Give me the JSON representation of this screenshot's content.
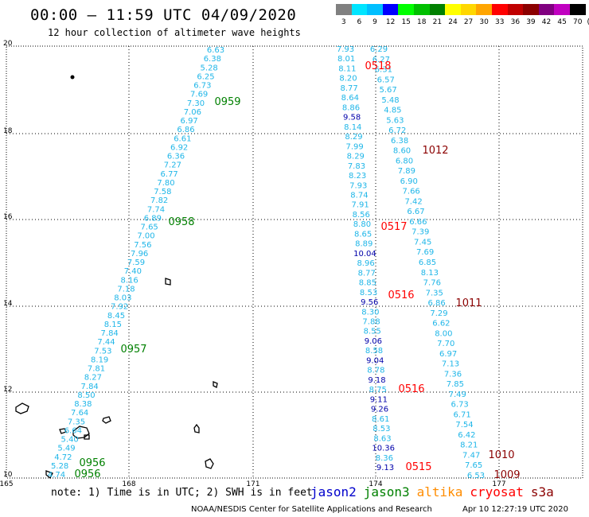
{
  "header": {
    "title": "00:00 – 11:59 UTC 04/09/2020",
    "subtitle": "12 hour collection of altimeter wave heights"
  },
  "color_scale": {
    "labels": [
      "3",
      "6",
      "9",
      "12",
      "15",
      "18",
      "21",
      "24",
      "27",
      "30",
      "33",
      "36",
      "39",
      "42",
      "45",
      "70"
    ],
    "colors": [
      "#808080",
      "#00e5ff",
      "#00bfff",
      "#0000ff",
      "#00ff00",
      "#00c000",
      "#008000",
      "#ffff00",
      "#ffd700",
      "#ffa500",
      "#ff0000",
      "#c00000",
      "#8b0000",
      "#800080",
      "#c000c0",
      "#000000"
    ],
    "unit": "(ft)"
  },
  "map": {
    "lat_labels": [
      "20",
      "18",
      "16",
      "14",
      "12",
      "10"
    ],
    "lon_labels": [
      "165",
      "168",
      "171",
      "174",
      "177"
    ],
    "colors": {
      "jason2": "#0000cc",
      "jason3": "#008000",
      "altika": "#ff8c00",
      "cryosat": "#ff0000",
      "s3a": "#8b0000",
      "value_light": "#1fb6e8",
      "value_dark": "#0000aa",
      "grid": "#000000",
      "land": "#000000"
    },
    "tracks": [
      {
        "color": "#1fb6e8",
        "values": [
          "6.63",
          "6.38",
          "5.28",
          "6.25",
          "6.73",
          "7.69",
          "7.30",
          "7.06",
          "6.97",
          "6.86",
          "6.61",
          "6.92",
          "6.36",
          "7.27",
          "6.77",
          "7.80",
          "7.58",
          "7.82",
          "7.74",
          "6.89",
          "7.65",
          "7.00",
          "7.56",
          "7.96",
          "7.59",
          "7.40",
          "8.16",
          "7.18",
          "8.03",
          "7.92",
          "8.45",
          "8.15",
          "7.84",
          "7.44",
          "7.53",
          "8.19",
          "7.81",
          "8.27",
          "7.84",
          "8.50",
          "8.38",
          "7.64",
          "7.35",
          "6.64",
          "5.40",
          "5.49",
          "4.72",
          "5.28",
          "4.74"
        ]
      },
      {
        "color": "#1fb6e8",
        "values": [
          "7.93",
          "8.01",
          "8.11",
          "8.20",
          "8.77",
          "8.64",
          "8.86",
          "9.58",
          "8.14",
          "8.29",
          "7.99",
          "8.29",
          "7.83",
          "8.23",
          "7.93",
          "8.74",
          "7.91",
          "8.56",
          "8.80",
          "8.65",
          "8.89",
          "10.04",
          "8.96",
          "8.77",
          "8.85",
          "8.53",
          "9.56",
          "8.30",
          "7.88",
          "8.55",
          "9.06",
          "8.58",
          "9.04",
          "8.78",
          "9.18",
          "8.75",
          "9.11",
          "9.26",
          "8.61",
          "8.53",
          "8.63",
          "10.36",
          "8.36",
          "9.13"
        ]
      },
      {
        "color": "#1fb6e8",
        "values": [
          "6.29",
          "6.27",
          "6.31",
          "6.57",
          "5.67",
          "5.48",
          "4.85",
          "5.63",
          "6.72",
          "6.38",
          "8.60",
          "6.80",
          "7.89",
          "6.90",
          "7.66",
          "7.42",
          "6.67",
          "6.66",
          "7.39",
          "7.45",
          "7.69",
          "6.85",
          "8.13",
          "7.76",
          "7.35",
          "6.86",
          "7.29",
          "6.62",
          "8.00",
          "7.70",
          "6.97",
          "7.13",
          "7.36",
          "7.85",
          "7.49",
          "6.73",
          "6.71",
          "7.54",
          "6.42",
          "8.21",
          "7.47",
          "7.65",
          "6.53"
        ]
      }
    ],
    "pass_labels": [
      {
        "text": "0959",
        "color": "#008000"
      },
      {
        "text": "0958",
        "color": "#008000"
      },
      {
        "text": "0957",
        "color": "#008000"
      },
      {
        "text": "0956",
        "color": "#008000"
      },
      {
        "text": "0956",
        "color": "#008000"
      },
      {
        "text": "0518",
        "color": "#ff0000"
      },
      {
        "text": "0517",
        "color": "#ff0000"
      },
      {
        "text": "0516",
        "color": "#ff0000"
      },
      {
        "text": "0516",
        "color": "#ff0000"
      },
      {
        "text": "0515",
        "color": "#ff0000"
      },
      {
        "text": "1012",
        "color": "#8b0000"
      },
      {
        "text": "1011",
        "color": "#8b0000"
      },
      {
        "text": "1010",
        "color": "#8b0000"
      },
      {
        "text": "1009",
        "color": "#8b0000"
      }
    ]
  },
  "footer": {
    "note": "note: 1) Time is in UTC; 2) SWH is in feet",
    "sats": [
      {
        "name": "jason2",
        "color": "#0000cc"
      },
      {
        "name": "jason3",
        "color": "#008000"
      },
      {
        "name": "altika",
        "color": "#ff8c00"
      },
      {
        "name": "cryosat",
        "color": "#ff0000"
      },
      {
        "name": "s3a",
        "color": "#8b0000"
      }
    ],
    "credit": "NOAA/NESDIS Center for Satellite Applications and Research",
    "timestamp": "Apr 10 12:27:19 UTC 2020"
  }
}
